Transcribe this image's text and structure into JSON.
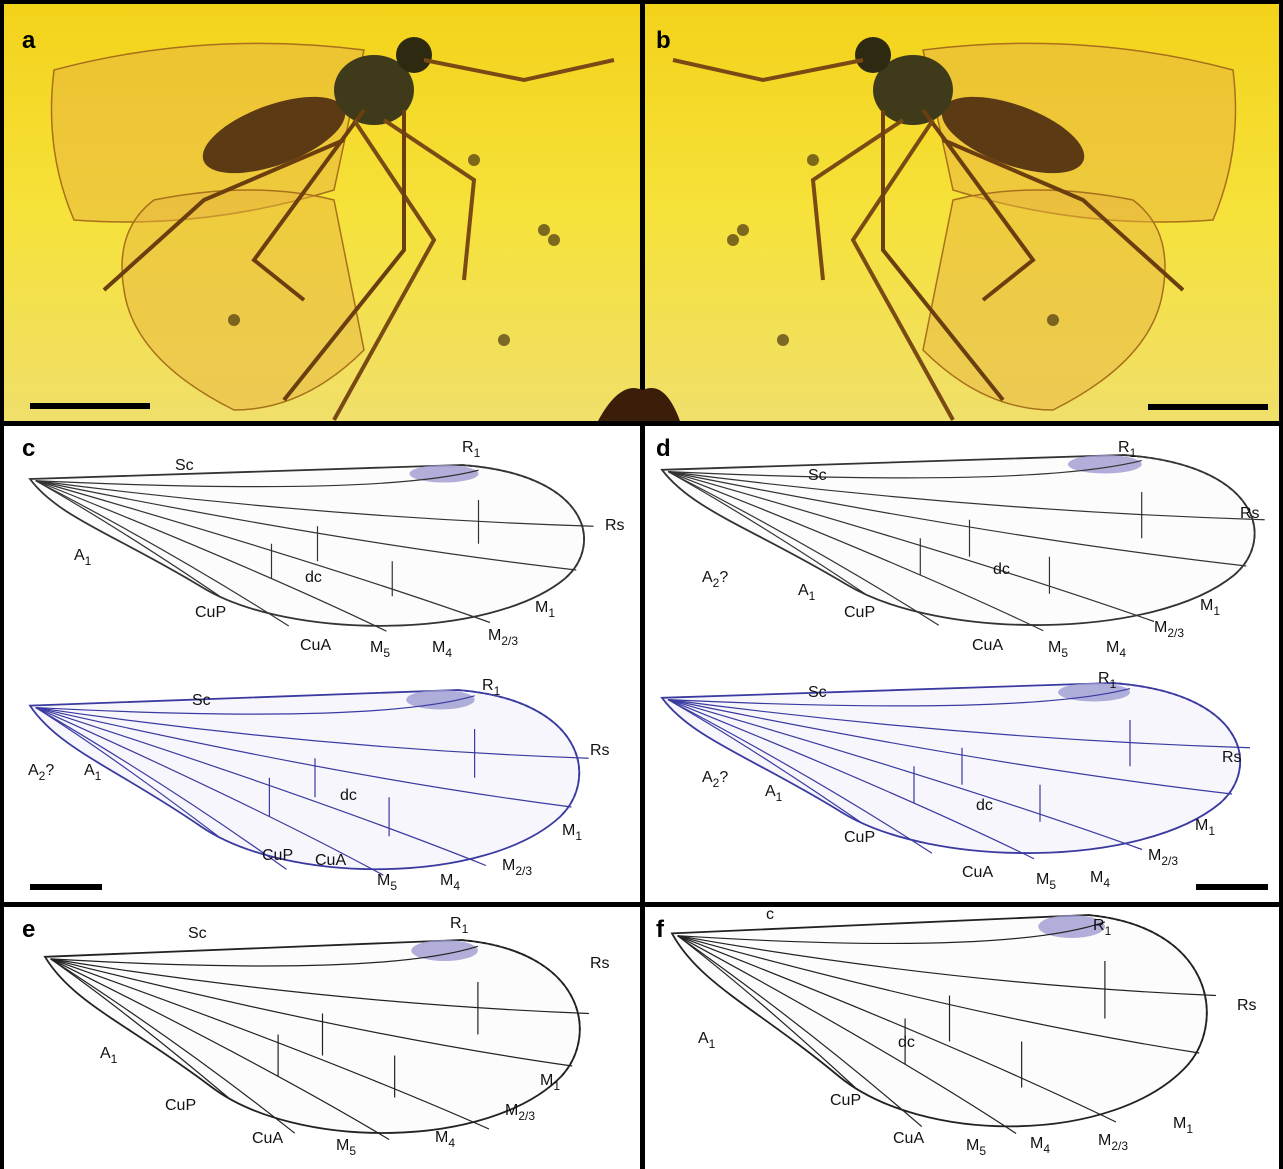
{
  "panels": [
    {
      "letter": "a"
    },
    {
      "letter": "b"
    },
    {
      "letter": "c",
      "wings": [
        {
          "labels": [
            {
              "main": "Sc"
            },
            {
              "main": "R",
              "sub": "1"
            },
            {
              "main": "Rs"
            },
            {
              "main": "A",
              "sub": "1"
            },
            {
              "main": "dc"
            },
            {
              "main": "CuP"
            },
            {
              "main": "CuA"
            },
            {
              "main": "M",
              "sub": "5"
            },
            {
              "main": "M",
              "sub": "4"
            },
            {
              "main": "M",
              "sub": "2/3"
            },
            {
              "main": "M",
              "sub": "1"
            }
          ]
        },
        {
          "labels": [
            {
              "main": "Sc"
            },
            {
              "main": "R",
              "sub": "1"
            },
            {
              "main": "Rs"
            },
            {
              "main": "A",
              "sub": "2",
              "after": "?"
            },
            {
              "main": "A",
              "sub": "1"
            },
            {
              "main": "dc"
            },
            {
              "main": "CuP"
            },
            {
              "main": "CuA"
            },
            {
              "main": "M",
              "sub": "5"
            },
            {
              "main": "M",
              "sub": "4"
            },
            {
              "main": "M",
              "sub": "2/3"
            },
            {
              "main": "M",
              "sub": "1"
            }
          ]
        }
      ]
    },
    {
      "letter": "d",
      "wings": [
        {
          "labels": [
            {
              "main": "Sc"
            },
            {
              "main": "R",
              "sub": "1"
            },
            {
              "main": "Rs"
            },
            {
              "main": "A",
              "sub": "2",
              "after": "?"
            },
            {
              "main": "A",
              "sub": "1"
            },
            {
              "main": "dc"
            },
            {
              "main": "CuP"
            },
            {
              "main": "CuA"
            },
            {
              "main": "M",
              "sub": "5"
            },
            {
              "main": "M",
              "sub": "4"
            },
            {
              "main": "M",
              "sub": "2/3"
            },
            {
              "main": "M",
              "sub": "1"
            }
          ]
        },
        {
          "labels": [
            {
              "main": "Sc"
            },
            {
              "main": "R",
              "sub": "1"
            },
            {
              "main": "Rs"
            },
            {
              "main": "A",
              "sub": "2",
              "after": "?"
            },
            {
              "main": "A",
              "sub": "1"
            },
            {
              "main": "dc"
            },
            {
              "main": "CuP"
            },
            {
              "main": "CuA"
            },
            {
              "main": "M",
              "sub": "5"
            },
            {
              "main": "M",
              "sub": "4"
            },
            {
              "main": "M",
              "sub": "2/3"
            },
            {
              "main": "M",
              "sub": "1"
            }
          ]
        }
      ]
    },
    {
      "letter": "e",
      "wings": [
        {
          "labels": [
            {
              "main": "Sc"
            },
            {
              "main": "R",
              "sub": "1"
            },
            {
              "main": "Rs"
            },
            {
              "main": "A",
              "sub": "1"
            },
            {
              "main": "CuP"
            },
            {
              "main": "CuA"
            },
            {
              "main": "M",
              "sub": "5"
            },
            {
              "main": "M",
              "sub": "4"
            },
            {
              "main": "M",
              "sub": "2/3"
            },
            {
              "main": "M",
              "sub": "1"
            }
          ]
        }
      ]
    },
    {
      "letter": "f",
      "wings": [
        {
          "labels": [
            {
              "main": "c"
            },
            {
              "main": "R",
              "sub": "1"
            },
            {
              "main": "Rs"
            },
            {
              "main": "A",
              "sub": "1"
            },
            {
              "main": "dc"
            },
            {
              "main": "CuP"
            },
            {
              "main": "CuA"
            },
            {
              "main": "M",
              "sub": "5"
            },
            {
              "main": "M",
              "sub": "4"
            },
            {
              "main": "M",
              "sub": "2/3"
            },
            {
              "main": "M",
              "sub": "1"
            }
          ]
        }
      ]
    }
  ]
}
